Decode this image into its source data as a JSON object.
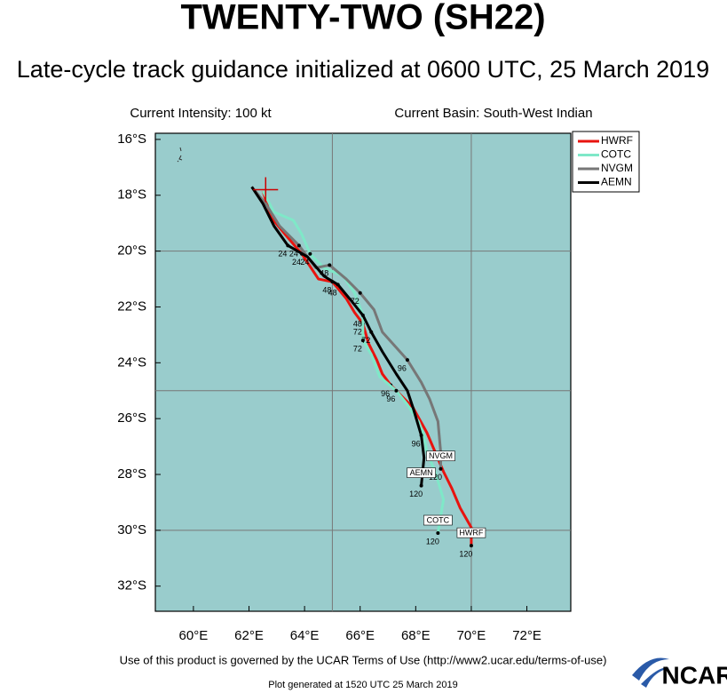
{
  "chart_data": {
    "type": "line",
    "title": "TWENTY-TWO (SH22)",
    "subtitle": "Late-cycle track guidance initialized at 0600 UTC, 25 March 2019",
    "left_note": "Current Intensity: 100 kt",
    "right_note": "Current Basin: South-West Indian",
    "footer": "Use of this product is governed by the UCAR Terms of Use (http://www2.ucar.edu/terms-of-use)",
    "generated": "Plot generated at 1520 UTC  25 March 2019",
    "logo": "NCAR",
    "xlim": [
      58.63,
      73.58
    ],
    "ylim": [
      -32.9,
      -15.78
    ],
    "xticks": [
      {
        "value": 60,
        "label": "60°E"
      },
      {
        "value": 62,
        "label": "62°E"
      },
      {
        "value": 64,
        "label": "64°E"
      },
      {
        "value": 66,
        "label": "66°E"
      },
      {
        "value": 68,
        "label": "68°E"
      },
      {
        "value": 70,
        "label": "70°E"
      },
      {
        "value": 72,
        "label": "72°E"
      }
    ],
    "yticks": [
      {
        "value": -16,
        "label": "16°S"
      },
      {
        "value": -18,
        "label": "18°S"
      },
      {
        "value": -20,
        "label": "20°S"
      },
      {
        "value": -22,
        "label": "22°S"
      },
      {
        "value": -24,
        "label": "24°S"
      },
      {
        "value": -26,
        "label": "26°S"
      },
      {
        "value": -28,
        "label": "28°S"
      },
      {
        "value": -30,
        "label": "30°S"
      },
      {
        "value": -32,
        "label": "32°S"
      }
    ],
    "grid_x": [
      65,
      70
    ],
    "grid_y": [
      -20,
      -25,
      -30
    ],
    "current_position": {
      "lon": 62.6,
      "lat": -17.8
    },
    "legend": "top-right",
    "series": [
      {
        "name": "HWRF",
        "color": "#e8140f",
        "x": [
          62.5,
          62.8,
          63.3,
          63.9,
          64.5,
          65.0,
          65.5,
          65.8,
          66.1,
          66.3,
          66.6,
          66.8,
          67.1,
          67.6,
          67.9,
          68.4,
          68.7,
          69.0,
          69.3,
          69.6,
          70.0,
          70.0
        ],
        "values": [
          -17.85,
          -18.8,
          -19.4,
          -20.1,
          -21.0,
          -21.1,
          -21.7,
          -22.2,
          -22.6,
          -23.3,
          -23.9,
          -24.4,
          -24.8,
          -25.3,
          -25.6,
          -26.5,
          -27.2,
          -27.9,
          -28.5,
          -29.2,
          -29.9,
          -30.55
        ],
        "labels": [
          null,
          null,
          null,
          "24",
          null,
          "48",
          null,
          null,
          "72",
          null,
          null,
          null,
          "96",
          null,
          null,
          null,
          null,
          null,
          null,
          null,
          null,
          "120"
        ]
      },
      {
        "name": "COTC",
        "color": "#7fe8c8",
        "x": [
          62.5,
          62.9,
          63.6,
          63.9,
          64.2,
          64.7,
          65.4,
          65.8,
          66.1,
          66.1,
          66.4,
          66.7,
          67.3,
          67.7,
          68.1,
          68.3,
          68.4,
          68.7,
          69.0,
          68.8
        ],
        "values": [
          -17.85,
          -18.6,
          -18.9,
          -19.4,
          -20.1,
          -20.6,
          -20.9,
          -21.5,
          -22.3,
          -23.2,
          -23.7,
          -24.5,
          -25.0,
          -25.5,
          -26.1,
          -26.6,
          -27.2,
          -27.9,
          -28.9,
          -30.1
        ],
        "labels": [
          null,
          null,
          null,
          null,
          "24",
          null,
          null,
          null,
          "48",
          "72",
          null,
          null,
          "96",
          null,
          null,
          null,
          null,
          null,
          null,
          "120"
        ]
      },
      {
        "name": "NVGM",
        "color": "#777777",
        "x": [
          62.1,
          62.6,
          63.1,
          63.8,
          64.4,
          64.9,
          65.5,
          66.0,
          66.5,
          66.8,
          67.7,
          68.2,
          68.5,
          68.8,
          68.9,
          68.9
        ],
        "values": [
          -17.7,
          -18.3,
          -19.1,
          -19.8,
          -20.6,
          -20.5,
          -21.0,
          -21.5,
          -22.1,
          -22.9,
          -23.9,
          -24.7,
          -25.3,
          -26.1,
          -27.2,
          -27.8
        ],
        "labels": [
          null,
          null,
          null,
          "24",
          null,
          "48",
          null,
          "72",
          null,
          null,
          "96",
          null,
          null,
          null,
          null,
          "120"
        ]
      },
      {
        "name": "AEMN",
        "color": "#000000",
        "x": [
          62.1,
          62.5,
          62.9,
          63.4,
          64.1,
          64.7,
          65.2,
          65.7,
          66.1,
          66.4,
          66.8,
          67.3,
          67.7,
          67.9,
          68.2,
          68.3,
          68.2
        ],
        "values": [
          -17.7,
          -18.3,
          -19.1,
          -19.8,
          -20.2,
          -20.9,
          -21.2,
          -21.8,
          -22.3,
          -22.9,
          -23.6,
          -24.4,
          -25.0,
          -25.6,
          -26.6,
          -27.4,
          -28.4
        ],
        "labels": [
          null,
          null,
          null,
          "24",
          null,
          null,
          "48",
          null,
          null,
          "72",
          null,
          null,
          null,
          null,
          "96",
          null,
          "120"
        ]
      }
    ]
  }
}
